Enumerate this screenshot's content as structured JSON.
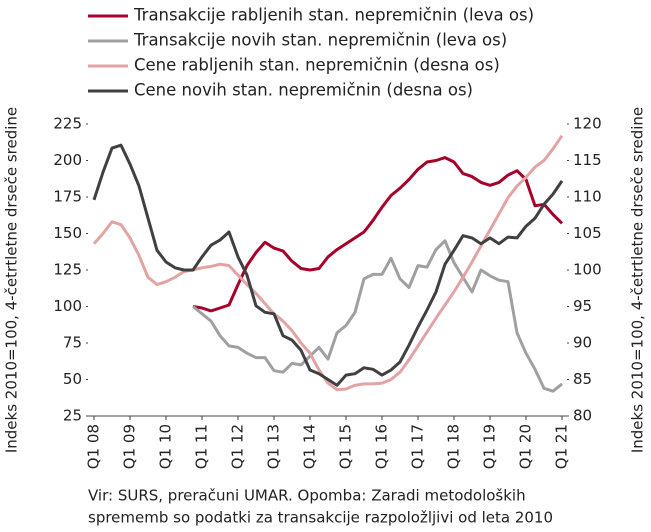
{
  "chart_data": {
    "type": "line",
    "ylabel": "Indeks 2010=100, 4-četrtletne drseče sredine",
    "y2label": "Indeks 2010=100, 4-četrtletne drseče sredine",
    "note": [
      "Vir: SURS, preračuni UMAR. Opomba: Zaradi metodoloških",
      "sprememb so podatki za transakcije razpoložljivi od leta 2010"
    ],
    "categories": [
      "Q1 08",
      null,
      null,
      null,
      "Q1 09",
      null,
      null,
      null,
      "Q1 10",
      null,
      null,
      null,
      "Q1 11",
      null,
      null,
      null,
      "Q1 12",
      null,
      null,
      null,
      "Q1 13",
      null,
      null,
      null,
      "Q1 14",
      null,
      null,
      null,
      "Q1 15",
      null,
      null,
      null,
      "Q1 16",
      null,
      null,
      null,
      "Q1 17",
      null,
      null,
      null,
      "Q1 18",
      null,
      null,
      null,
      "Q1 19",
      null,
      null,
      null,
      "Q1 20",
      null,
      null,
      null,
      "Q1 21"
    ],
    "ylim": [
      25,
      225
    ],
    "yticks": [
      25,
      50,
      75,
      100,
      125,
      150,
      175,
      200,
      225
    ],
    "y2lim": [
      80,
      120
    ],
    "y2ticks": [
      80,
      85,
      90,
      95,
      100,
      105,
      110,
      115,
      120
    ],
    "series": [
      {
        "name": "Transakcije rabljenih stan. nepremičnin (leva os)",
        "color": "#a6002a",
        "values": [
          null,
          null,
          null,
          null,
          null,
          null,
          null,
          null,
          null,
          null,
          null,
          100,
          99,
          97,
          99,
          101,
          115,
          128,
          137,
          144,
          140,
          138,
          131,
          126,
          125,
          126,
          134,
          139,
          143,
          147,
          151,
          159,
          168,
          176,
          181,
          187,
          194,
          199,
          200,
          202,
          199,
          191,
          189,
          185,
          183,
          185,
          190,
          193,
          187,
          169,
          170,
          163,
          157
        ]
      },
      {
        "name": "Transakcije novih stan. nepremičnin (leva os)",
        "color": "#a0a0a0",
        "values": [
          null,
          null,
          null,
          null,
          null,
          null,
          null,
          null,
          null,
          null,
          null,
          100,
          95,
          90,
          80,
          73,
          72,
          68,
          65,
          65,
          56,
          55,
          61,
          60,
          66,
          72,
          64,
          82,
          87,
          96,
          119,
          122,
          122,
          133,
          119,
          113,
          128,
          127,
          139,
          145,
          130,
          120,
          110,
          125,
          121,
          118,
          117,
          82,
          68,
          57,
          44,
          42,
          47
        ]
      },
      {
        "name": "Cene rabljenih stan. nepremičnin (desna os)",
        "color": "#e3a3a3",
        "axis": "y2",
        "values": [
          103.6,
          105,
          106.6,
          106.2,
          104.4,
          102,
          99,
          98,
          98.4,
          99,
          99.8,
          100,
          100.3,
          100.5,
          100.8,
          100.6,
          99.3,
          98,
          96.8,
          95.4,
          94,
          93,
          91.7,
          90,
          88.6,
          86.3,
          84.5,
          83.6,
          83.7,
          84.2,
          84.4,
          84.4,
          84.5,
          85,
          86,
          87.7,
          89.6,
          91.5,
          93.4,
          95.2,
          97,
          99,
          101.1,
          103.3,
          105.5,
          107.7,
          109.9,
          111.5,
          112.7,
          114.1,
          115,
          116.6,
          118.4
        ]
      },
      {
        "name": "Cene novih stan. nepremičnin (desna os)",
        "color": "#404040",
        "axis": "y2",
        "values": [
          109.6,
          113.4,
          116.7,
          117.1,
          114.5,
          111.5,
          107.1,
          102.7,
          101.1,
          100.3,
          100,
          100,
          101.8,
          103.4,
          104.1,
          105.2,
          101.8,
          99.3,
          95.1,
          94.2,
          94,
          91,
          90.4,
          89,
          86.3,
          85.8,
          85,
          84.2,
          85.6,
          85.8,
          86.6,
          86.4,
          85.6,
          86.3,
          87.4,
          89.7,
          92.2,
          94.5,
          97,
          100.8,
          102.7,
          104.7,
          104.4,
          103.6,
          104.4,
          103.6,
          104.5,
          104.4,
          106,
          107.1,
          109,
          110.4,
          112.2
        ]
      }
    ]
  }
}
